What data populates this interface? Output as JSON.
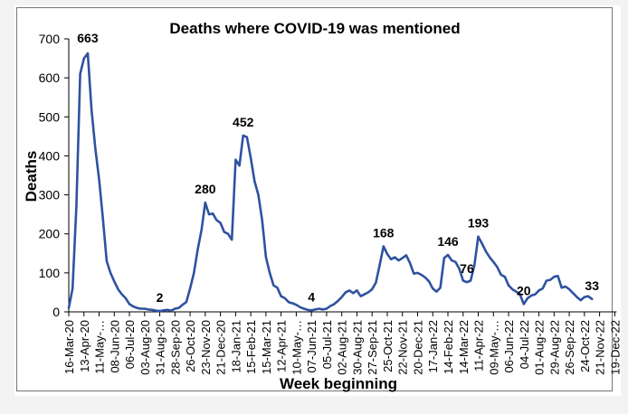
{
  "chart_data": {
    "type": "line",
    "title": "Deaths where COVID-19 was mentioned",
    "xlabel": "Week beginning",
    "ylabel": "Deaths",
    "ylim": [
      0,
      700
    ],
    "yticks": [
      0,
      100,
      200,
      300,
      400,
      500,
      600,
      700
    ],
    "grid": false,
    "legend": "none",
    "x_start": "16-Mar-20",
    "x_interval_weeks": 1,
    "x_tick_labels": [
      "16-Mar-20",
      "13-Apr-20",
      "11-May-20",
      "08-Jun-20",
      "06-Jul-20",
      "03-Aug-20",
      "31-Aug-20",
      "28-Sep-20",
      "26-Oct-20",
      "23-Nov-20",
      "21-Dec-20",
      "18-Jan-21",
      "15-Feb-21",
      "15-Mar-21",
      "12-Apr-21",
      "10-May-21",
      "07-Jun-21",
      "05-Jul-21",
      "02-Aug-21",
      "30-Aug-21",
      "27-Sep-21",
      "25-Oct-21",
      "22-Nov-21",
      "20-Dec-21",
      "17-Jan-22",
      "14-Feb-22",
      "14-Mar-22",
      "11-Apr-22",
      "09-May-22",
      "06-Jun-22",
      "04-Jul-22",
      "01-Aug-22",
      "29-Aug-22",
      "26-Sep-22",
      "24-Oct-22",
      "21-Nov-22",
      "19-Dec-22"
    ],
    "x_tick_labels_display": [
      "16-Mar-20",
      "13-Apr-20",
      "11-May-…",
      "08-Jun-20",
      "06-Jul-20",
      "03-Aug-20",
      "31-Aug-20",
      "28-Sep-20",
      "26-Oct-20",
      "23-Nov-20",
      "21-Dec-20",
      "18-Jan-21",
      "15-Feb-21",
      "15-Mar-21",
      "12-Apr-21",
      "10-May-…",
      "07-Jun-21",
      "05-Jul-21",
      "02-Aug-21",
      "30-Aug-21",
      "27-Sep-21",
      "25-Oct-21",
      "22-Nov-21",
      "20-Dec-21",
      "17-Jan-22",
      "14-Feb-22",
      "14-Mar-22",
      "11-Apr-22",
      "09-May-…",
      "06-Jun-22",
      "04-Jul-22",
      "01-Aug-22",
      "29-Aug-22",
      "26-Sep-22",
      "24-Oct-22",
      "21-Nov-22",
      "19-Dec-22"
    ],
    "series": [
      {
        "name": "Deaths where COVID-19 was mentioned",
        "color": "#2f52a0",
        "values": [
          10,
          60,
          270,
          610,
          650,
          663,
          520,
          420,
          340,
          240,
          130,
          100,
          78,
          58,
          45,
          35,
          20,
          14,
          10,
          8,
          8,
          6,
          5,
          3,
          2,
          4,
          5,
          3,
          8,
          10,
          18,
          25,
          60,
          100,
          160,
          210,
          280,
          250,
          252,
          235,
          228,
          205,
          200,
          185,
          390,
          375,
          452,
          448,
          395,
          335,
          300,
          235,
          140,
          100,
          68,
          62,
          40,
          35,
          25,
          22,
          18,
          12,
          8,
          5,
          4,
          6,
          8,
          6,
          8,
          15,
          20,
          28,
          38,
          50,
          55,
          48,
          55,
          40,
          45,
          50,
          58,
          75,
          120,
          168,
          148,
          135,
          140,
          132,
          138,
          145,
          125,
          98,
          100,
          95,
          88,
          78,
          60,
          52,
          62,
          138,
          146,
          132,
          128,
          110,
          80,
          76,
          80,
          120,
          193,
          175,
          155,
          140,
          128,
          115,
          95,
          90,
          68,
          58,
          52,
          45,
          20,
          35,
          42,
          45,
          55,
          60,
          80,
          82,
          90,
          92,
          62,
          65,
          58,
          48,
          38,
          30,
          38,
          40,
          33
        ],
        "labels": [
          {
            "week_index": 5,
            "text": "663"
          },
          {
            "week_index": 24,
            "text": "2"
          },
          {
            "week_index": 36,
            "text": "280"
          },
          {
            "week_index": 46,
            "text": "452"
          },
          {
            "week_index": 64,
            "text": "4"
          },
          {
            "week_index": 83,
            "text": "168"
          },
          {
            "week_index": 100,
            "text": "146"
          },
          {
            "week_index": 105,
            "text": "76"
          },
          {
            "week_index": 108,
            "text": "193"
          },
          {
            "week_index": 120,
            "text": "20"
          },
          {
            "week_index": 138,
            "text": "33"
          }
        ]
      }
    ]
  }
}
